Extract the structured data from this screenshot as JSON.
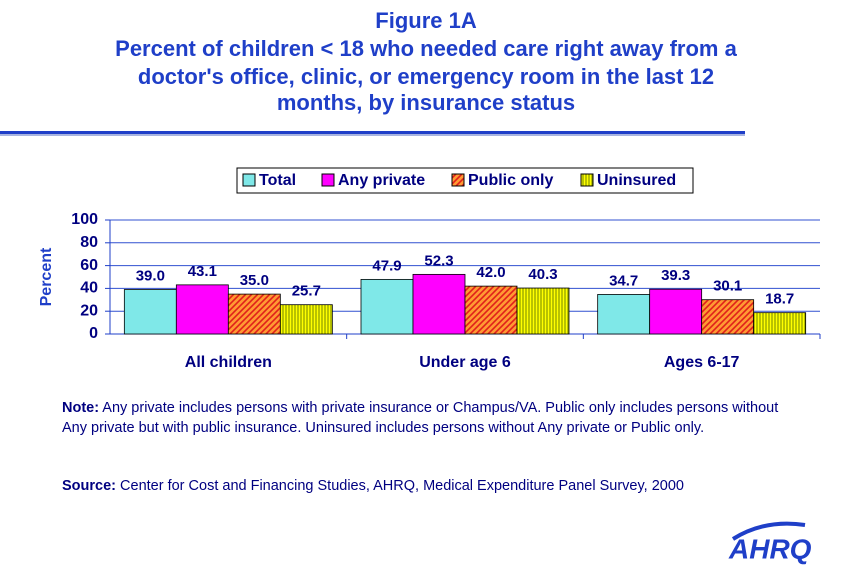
{
  "chart_data": {
    "type": "bar",
    "title": "Figure 1A",
    "subtitle": [
      "Percent of children < 18 who needed care right away from a",
      "doctor's office, clinic, or emergency room in the last 12",
      "months, by insurance status"
    ],
    "y_label": "Percent",
    "categories": [
      "All children",
      "Under age 6",
      "Ages 6-17"
    ],
    "series": [
      {
        "name": "Total",
        "color": "#7fe8e8",
        "values": [
          39.0,
          47.9,
          34.7
        ],
        "value_labels": [
          "39.0",
          "47.9",
          "34.7"
        ]
      },
      {
        "name": "Any private",
        "color": "#ff00ff",
        "values": [
          43.1,
          52.3,
          39.3
        ],
        "value_labels": [
          "43.1",
          "52.3",
          "39.3"
        ]
      },
      {
        "name": "Public only",
        "color": "#ff9933",
        "hatch": "diagonal",
        "values": [
          35.0,
          42.0,
          30.1
        ],
        "value_labels": [
          "35.0",
          "42.0",
          "30.1"
        ]
      },
      {
        "name": "Uninsured",
        "color": "#ffff00",
        "hatch": "vertical",
        "values": [
          25.7,
          40.3,
          18.7
        ],
        "value_labels": [
          "25.7",
          "40.3",
          "18.7"
        ]
      }
    ],
    "ylim": [
      0,
      100
    ],
    "yticks": [
      0,
      20,
      40,
      60,
      80,
      100
    ],
    "grid": true
  },
  "note": {
    "label": "Note:",
    "text": "Any private includes persons with private insurance or Champus/VA.  Public only includes persons without Any private but with public insurance. Uninsured includes persons without Any private or Public only."
  },
  "source": {
    "label": "Source:",
    "text": "Center for Cost and Financing Studies, AHRQ, Medical Expenditure Panel Survey, 2000"
  },
  "logo": "AHRQ"
}
